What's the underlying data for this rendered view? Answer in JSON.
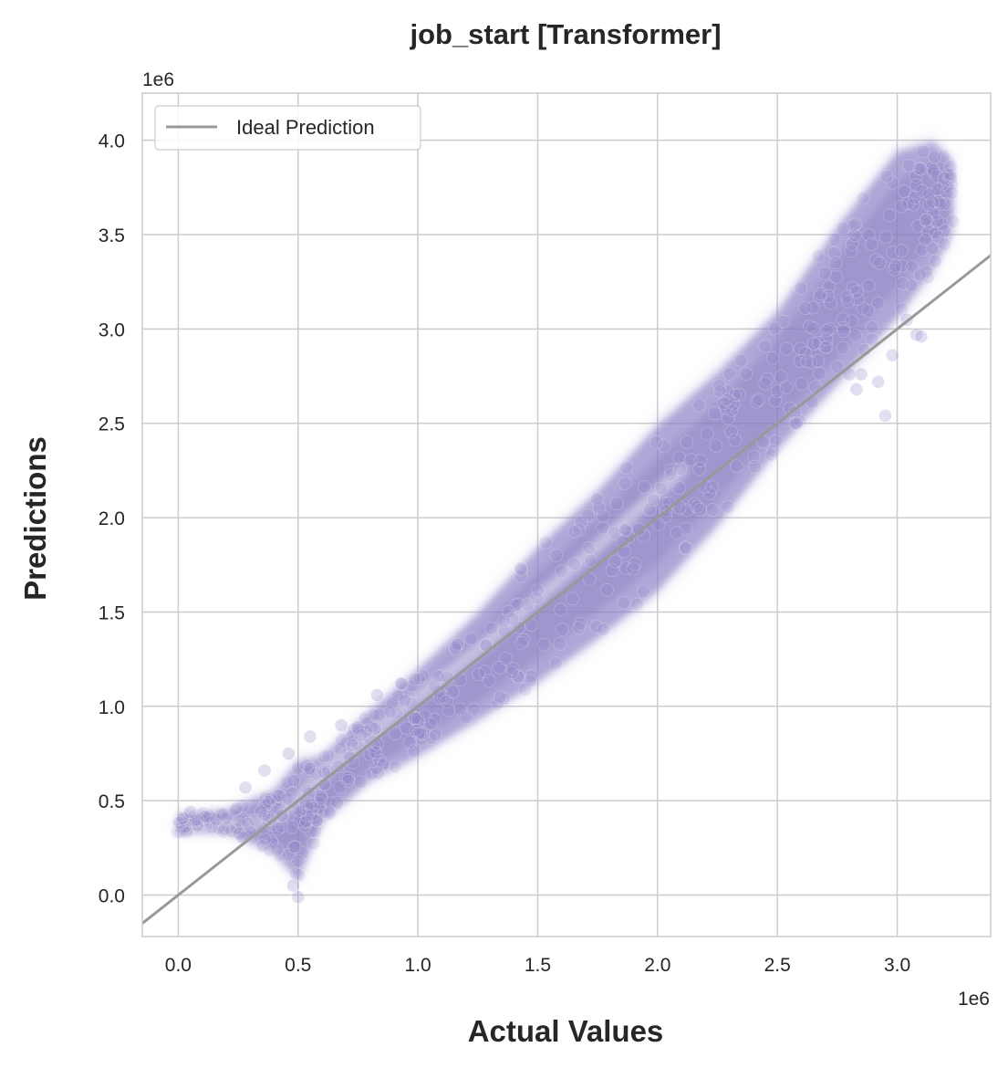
{
  "chart_data": {
    "type": "scatter",
    "title": "job_start [Transformer]",
    "xlabel": "Actual Values",
    "ylabel": "Predictions",
    "x_offset_label": "1e6",
    "y_offset_label": "1e6",
    "xlim": [
      -0.15,
      3.39
    ],
    "ylim": [
      -0.22,
      4.25
    ],
    "x_ticks": [
      0.0,
      0.5,
      1.0,
      1.5,
      2.0,
      2.5,
      3.0
    ],
    "x_tick_labels": [
      "0.0",
      "0.5",
      "1.0",
      "1.5",
      "2.0",
      "2.5",
      "3.0"
    ],
    "y_ticks": [
      0.0,
      0.5,
      1.0,
      1.5,
      2.0,
      2.5,
      3.0,
      3.5,
      4.0
    ],
    "y_tick_labels": [
      "0.0",
      "0.5",
      "1.0",
      "1.5",
      "2.0",
      "2.5",
      "3.0",
      "3.5",
      "4.0"
    ],
    "grid": true,
    "legend": {
      "placement": "top-left",
      "entries": [
        {
          "label": "Ideal Prediction",
          "color": "#999999",
          "marker": "line"
        }
      ]
    },
    "ideal_line": {
      "name": "Ideal Prediction",
      "points": [
        [
          -0.15,
          -0.15
        ],
        [
          3.39,
          3.39
        ]
      ],
      "color": "#999999"
    },
    "series": [
      {
        "color": "#8c7fc4",
        "density_band": [
          {
            "x": 0.0,
            "y_low": 0.33,
            "y_center": 0.37,
            "y_high": 0.43
          },
          {
            "x": 0.2,
            "y_low": 0.33,
            "y_center": 0.38,
            "y_high": 0.45
          },
          {
            "x": 0.4,
            "y_low": 0.22,
            "y_center": 0.38,
            "y_high": 0.56
          },
          {
            "x": 0.5,
            "y_low": 0.07,
            "y_center": 0.38,
            "y_high": 0.72
          },
          {
            "x": 0.6,
            "y_low": 0.38,
            "y_center": 0.52,
            "y_high": 0.74
          },
          {
            "x": 0.8,
            "y_low": 0.6,
            "y_center": 0.78,
            "y_high": 0.98
          },
          {
            "x": 1.0,
            "y_low": 0.73,
            "y_center": 0.97,
            "y_high": 1.2
          },
          {
            "x": 1.25,
            "y_low": 0.92,
            "y_center": 1.2,
            "y_high": 1.5
          },
          {
            "x": 1.5,
            "y_low": 1.12,
            "y_center": 1.48,
            "y_high": 1.85
          },
          {
            "x": 1.75,
            "y_low": 1.35,
            "y_center": 1.75,
            "y_high": 2.15
          },
          {
            "x": 2.0,
            "y_low": 1.6,
            "y_center": 2.02,
            "y_high": 2.5
          },
          {
            "x": 2.25,
            "y_low": 1.95,
            "y_center": 2.33,
            "y_high": 2.78
          },
          {
            "x": 2.5,
            "y_low": 2.35,
            "y_center": 2.7,
            "y_high": 3.1
          },
          {
            "x": 2.75,
            "y_low": 2.7,
            "y_center": 3.1,
            "y_high": 3.55
          },
          {
            "x": 3.0,
            "y_low": 3.05,
            "y_center": 3.5,
            "y_high": 3.95
          },
          {
            "x": 3.15,
            "y_low": 3.3,
            "y_center": 3.75,
            "y_high": 4.0
          },
          {
            "x": 3.23,
            "y_low": 3.5,
            "y_center": 3.75,
            "y_high": 3.9
          }
        ],
        "outliers": [
          [
            0.05,
            0.44
          ],
          [
            0.28,
            0.57
          ],
          [
            0.36,
            0.66
          ],
          [
            0.46,
            0.75
          ],
          [
            0.55,
            0.84
          ],
          [
            0.68,
            0.9
          ],
          [
            0.83,
            1.06
          ],
          [
            0.93,
            1.12
          ],
          [
            0.5,
            -0.01
          ],
          [
            0.48,
            0.05
          ],
          [
            2.95,
            2.54
          ],
          [
            2.98,
            2.86
          ],
          [
            2.92,
            2.72
          ],
          [
            3.04,
            3.05
          ],
          [
            3.08,
            2.97
          ],
          [
            2.83,
            2.68
          ],
          [
            2.85,
            2.76
          ],
          [
            2.58,
            2.5
          ],
          [
            2.8,
            2.76
          ],
          [
            3.1,
            2.96
          ]
        ]
      }
    ]
  }
}
